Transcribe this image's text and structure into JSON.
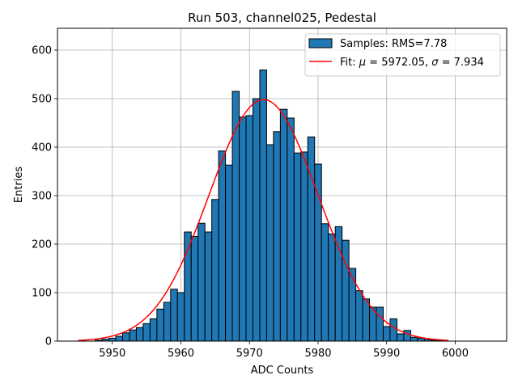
{
  "chart_data": {
    "type": "bar",
    "title": "Run 503, channel025, Pedestal",
    "xlabel": "ADC Counts",
    "ylabel": "Entries",
    "xlim": [
      5942.0,
      6007.5
    ],
    "ylim": [
      0,
      645
    ],
    "xticks": [
      5950,
      5960,
      5970,
      5980,
      5990,
      6000
    ],
    "yticks": [
      0,
      100,
      200,
      300,
      400,
      500,
      600
    ],
    "grid": true,
    "legend_position": "top-right",
    "bin_width": 1,
    "bar_color": "#1f77b4",
    "bar_edge_color": "#000000",
    "fit_color": "#ff0000",
    "histogram": {
      "name": "Samples: RMS=7.78",
      "bin_centers": [
        5948,
        5949,
        5950,
        5951,
        5952,
        5953,
        5954,
        5955,
        5956,
        5957,
        5958,
        5959,
        5960,
        5961,
        5962,
        5963,
        5964,
        5965,
        5966,
        5967,
        5968,
        5969,
        5970,
        5971,
        5972,
        5973,
        5974,
        5975,
        5976,
        5977,
        5978,
        5979,
        5980,
        5981,
        5982,
        5983,
        5984,
        5985,
        5986,
        5987,
        5988,
        5989,
        5990,
        5991,
        5992,
        5993,
        5994,
        5995,
        5996,
        5997,
        5998
      ],
      "values": [
        2,
        4,
        6,
        10,
        17,
        23,
        28,
        36,
        46,
        66,
        80,
        107,
        100,
        225,
        216,
        243,
        225,
        292,
        392,
        363,
        515,
        462,
        465,
        500,
        559,
        405,
        432,
        478,
        460,
        388,
        390,
        421,
        365,
        242,
        221,
        236,
        208,
        150,
        104,
        87,
        70,
        70,
        30,
        46,
        15,
        22,
        8,
        6,
        3,
        2,
        1
      ]
    },
    "fit": {
      "name": "Fit: μ = 5972.05, σ = 7.934",
      "label_prefix": "Fit: ",
      "mu_symbol": "μ",
      "mu_text": " = 5972.05, ",
      "sigma_symbol": "σ",
      "sigma_text": " = 7.934",
      "mu": 5972.05,
      "sigma": 7.934,
      "amplitude": 498,
      "x_range": [
        5945,
        5999
      ]
    }
  }
}
